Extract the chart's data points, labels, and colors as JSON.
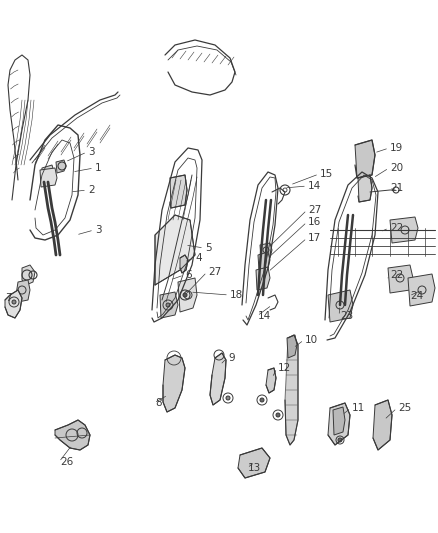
{
  "bg_color": "#ffffff",
  "line_color": "#3a3a3a",
  "label_color": "#3a3a3a",
  "fig_width": 4.38,
  "fig_height": 5.33,
  "dpi": 100
}
